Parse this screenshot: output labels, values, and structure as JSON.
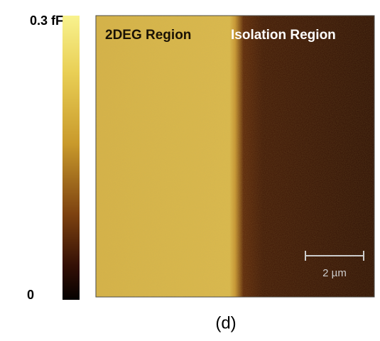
{
  "colorbar": {
    "max_label": "0.3 fF",
    "min_label": "0"
  },
  "image": {
    "left_region_label": "2DEG Region",
    "right_region_label": "Isolation Region",
    "scale_bar_label": "2 µm"
  },
  "caption": "(d)"
}
